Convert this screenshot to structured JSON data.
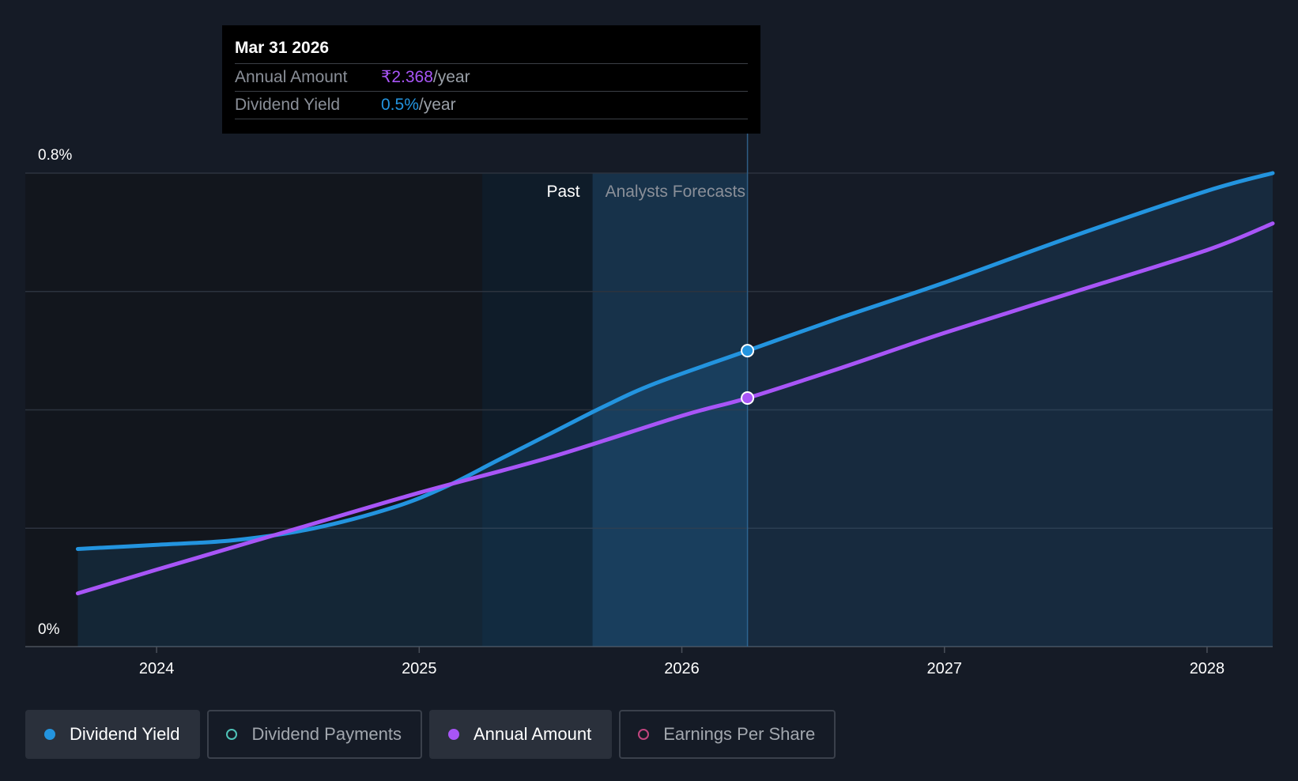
{
  "tooltip": {
    "date": "Mar 31 2026",
    "rows": [
      {
        "label": "Annual Amount",
        "value": "₹2.368",
        "unit": "/year"
      },
      {
        "label": "Dividend Yield",
        "value": "0.5%",
        "unit": "/year"
      }
    ]
  },
  "chart_data": {
    "type": "line",
    "y_tick_labels": [
      "0.8%",
      "0%"
    ],
    "ylim": [
      0,
      0.8
    ],
    "xlim": [
      2023.5,
      2028.25
    ],
    "x_tick_labels": [
      "2024",
      "2025",
      "2026",
      "2027",
      "2028"
    ],
    "x_ticks": [
      2024,
      2025,
      2026,
      2027,
      2028
    ],
    "regions": {
      "past_label": "Past",
      "forecast_label": "Analysts Forecasts"
    },
    "past_band": [
      2025.24,
      2025.66
    ],
    "forecast_band": [
      2025.66,
      2026.25
    ],
    "cursor_x": 2026.25,
    "series": [
      {
        "name": "Dividend Yield",
        "color": "#2394df",
        "x": [
          2023.7,
          2024.0,
          2024.3,
          2024.6,
          2024.9,
          2025.1,
          2025.3,
          2025.5,
          2025.7,
          2025.9,
          2026.25,
          2026.6,
          2027.0,
          2027.5,
          2028.0,
          2028.25
        ],
        "y": [
          0.165,
          0.172,
          0.18,
          0.2,
          0.235,
          0.27,
          0.315,
          0.36,
          0.405,
          0.445,
          0.5,
          0.555,
          0.615,
          0.695,
          0.77,
          0.8
        ]
      },
      {
        "name": "Annual Amount",
        "color": "#a855f7",
        "x": [
          2023.7,
          2024.0,
          2024.5,
          2025.0,
          2025.5,
          2026.0,
          2026.25,
          2026.6,
          2027.0,
          2027.5,
          2028.0,
          2028.25
        ],
        "y": [
          0.09,
          0.13,
          0.195,
          0.26,
          0.32,
          0.39,
          0.42,
          0.47,
          0.53,
          0.6,
          0.67,
          0.715
        ]
      }
    ],
    "legend": [
      {
        "label": "Dividend Yield",
        "color": "#2394df",
        "active": true
      },
      {
        "label": "Dividend Payments",
        "color": "#4fc3b8",
        "active": false
      },
      {
        "label": "Annual Amount",
        "color": "#a855f7",
        "active": true
      },
      {
        "label": "Earnings Per Share",
        "color": "#c2457f",
        "active": false
      }
    ]
  }
}
